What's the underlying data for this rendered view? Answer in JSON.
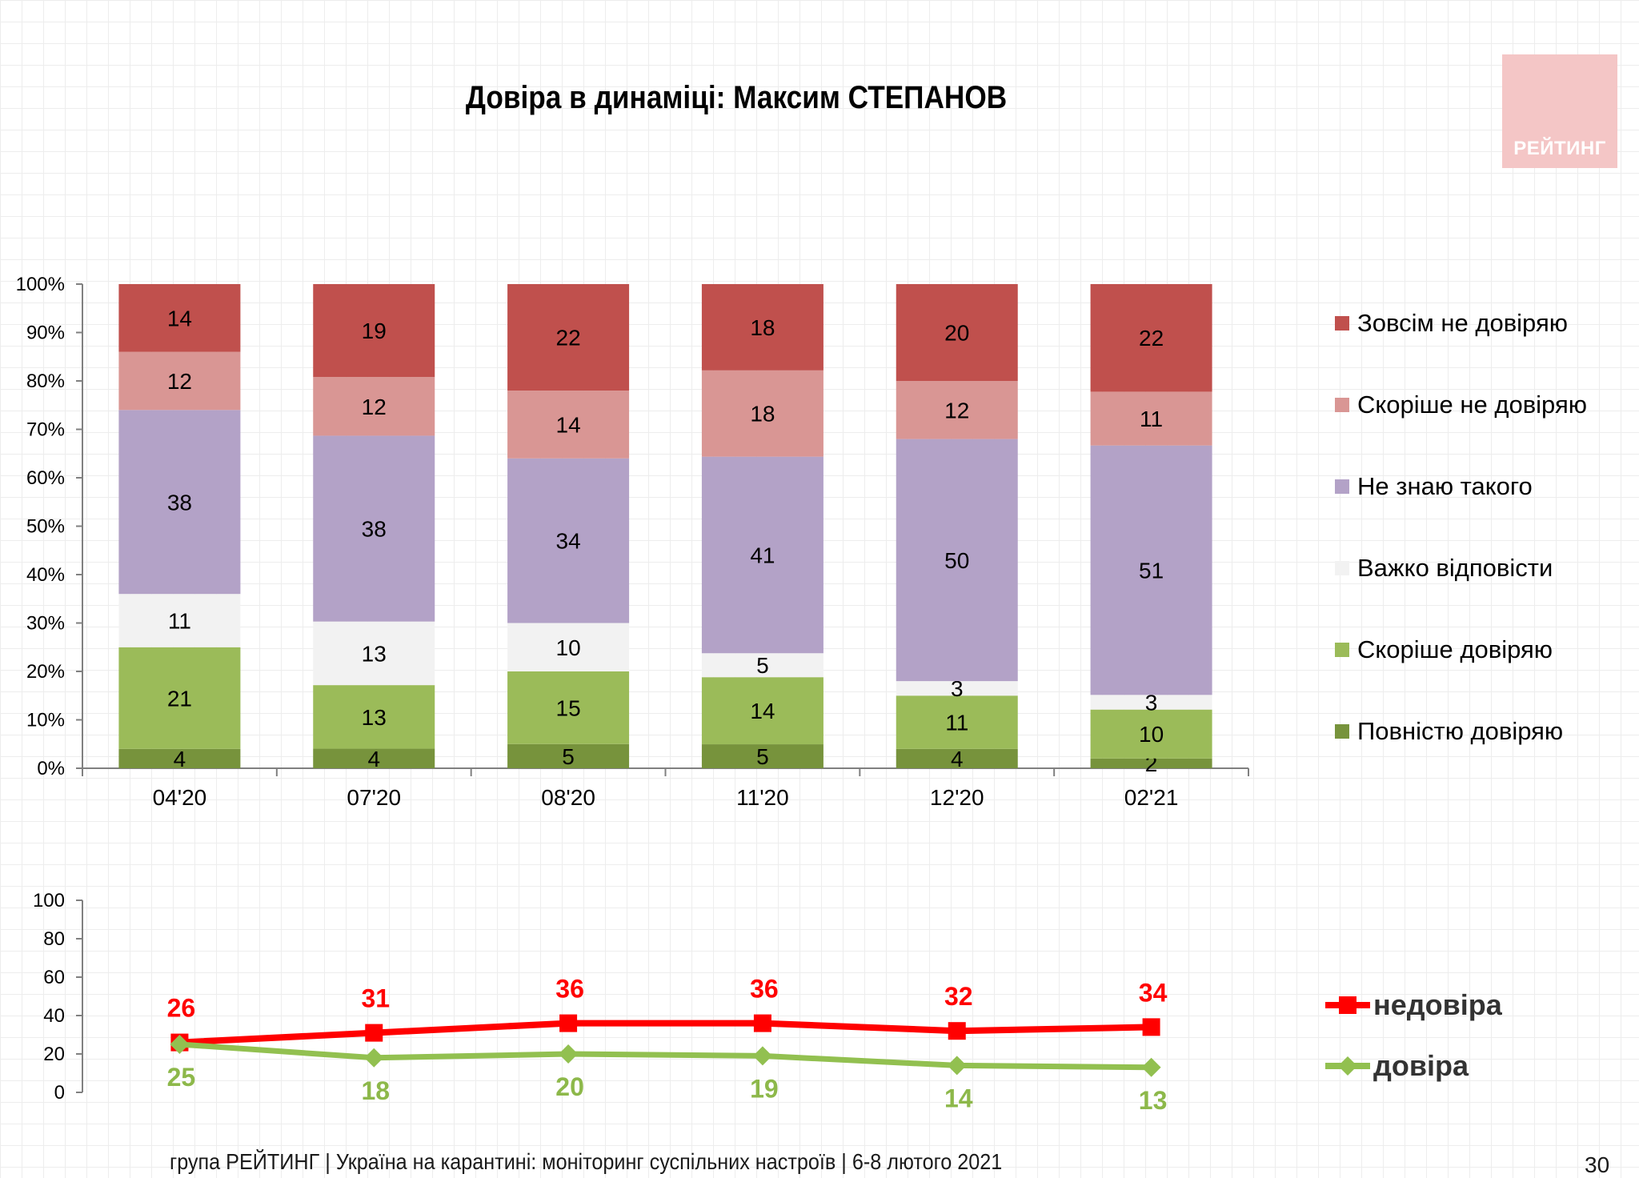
{
  "title": "Довіра в динаміці: Максим СТЕПАНОВ",
  "logo_text": "РЕЙТИНГ",
  "footer": "група РЕЙТИНГ | Україна на карантині: моніторинг суспільних настроїв | 6-8 лютого 2021",
  "page_number": "30",
  "colors": {
    "not_at_all": "#c0504d",
    "rather_not": "#d99694",
    "dont_know": "#b3a2c7",
    "hard_to_say": "#f2f2f2",
    "rather_trust": "#9bbb59",
    "fully_trust": "#77933c",
    "distrust_line": "#ff0000",
    "trust_line": "#92c050",
    "trust_label": "#8db84a"
  },
  "chart_data": [
    {
      "type": "bar",
      "stacked": true,
      "categories": [
        "04'20",
        "07'20",
        "08'20",
        "11'20",
        "12'20",
        "02'21"
      ],
      "y_ticks": [
        "0%",
        "10%",
        "20%",
        "30%",
        "40%",
        "50%",
        "60%",
        "70%",
        "80%",
        "90%",
        "100%"
      ],
      "ylim": [
        0,
        100
      ],
      "legend_position": "right",
      "series": [
        {
          "name": "Повністю довіряю",
          "color_key": "fully_trust",
          "values": [
            4,
            4,
            5,
            5,
            4,
            2
          ]
        },
        {
          "name": "Скоріше довіряю",
          "color_key": "rather_trust",
          "values": [
            21,
            13,
            15,
            14,
            11,
            10
          ]
        },
        {
          "name": "Важко відповісти",
          "color_key": "hard_to_say",
          "values": [
            11,
            13,
            10,
            5,
            3,
            3
          ]
        },
        {
          "name": "Не знаю такого",
          "color_key": "dont_know",
          "values": [
            38,
            38,
            34,
            41,
            50,
            51
          ]
        },
        {
          "name": "Скоріше не довіряю",
          "color_key": "rather_not",
          "values": [
            12,
            12,
            14,
            18,
            12,
            11
          ]
        },
        {
          "name": "Зовсім не довіряю",
          "color_key": "not_at_all",
          "values": [
            14,
            19,
            22,
            18,
            20,
            22
          ]
        }
      ],
      "legend_order": [
        "Зовсім не довіряю",
        "Скоріше не довіряю",
        "Не знаю такого",
        "Важко відповісти",
        "Скоріше довіряю",
        "Повністю довіряю"
      ]
    },
    {
      "type": "line",
      "y_ticks": [
        "0",
        "20",
        "40",
        "60",
        "80",
        "100"
      ],
      "ylim": [
        0,
        100
      ],
      "legend_position": "right",
      "series": [
        {
          "name": "недовіра",
          "color_key": "distrust_line",
          "marker": "square",
          "values": [
            26,
            31,
            36,
            36,
            32,
            34
          ]
        },
        {
          "name": "довіра",
          "color_key": "trust_line",
          "marker": "diamond",
          "values": [
            25,
            18,
            20,
            19,
            14,
            13
          ]
        }
      ]
    }
  ]
}
